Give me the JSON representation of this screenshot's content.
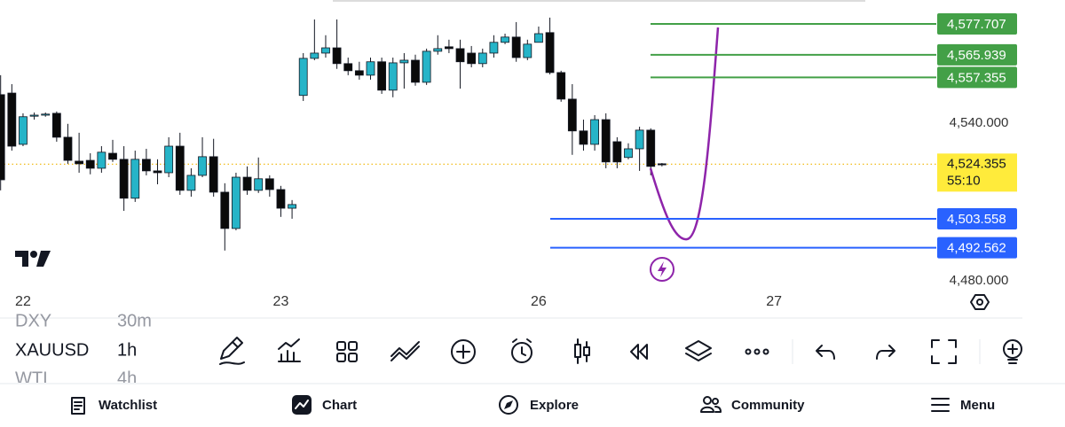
{
  "chart_data": {
    "type": "candlestick",
    "categories": [
      null,
      null,
      "22",
      null,
      null,
      null,
      null,
      null,
      null,
      null,
      null,
      null,
      null,
      null,
      null,
      null,
      null,
      null,
      null,
      null,
      null,
      null,
      null,
      null,
      null,
      "23",
      null,
      null,
      null,
      null,
      null,
      null,
      null,
      null,
      null,
      null,
      null,
      null,
      null,
      null,
      null,
      null,
      null,
      null,
      null,
      null,
      null,
      null,
      "26",
      null,
      null,
      null,
      null,
      null,
      null,
      null,
      null,
      null,
      null,
      null,
      null,
      null,
      null,
      null,
      null,
      null,
      null,
      null,
      null,
      "27"
    ],
    "open": [
      4550.8,
      4551.4,
      4531.9,
      4542.7,
      4543.0,
      4543.7,
      4534.6,
      4525.5,
      4525.8,
      4522.8,
      4528.5,
      4526.2,
      4511.4,
      4526.2,
      4521.8,
      4521.1,
      4531.2,
      4514.4,
      4520.1,
      4527.2,
      4513.7,
      4499.9,
      4519.4,
      4514.4,
      4518.8,
      4514.7,
      4507.6,
      4550.5,
      4564.6,
      4566.6,
      4568.6,
      4562.6,
      4559.9,
      4558.2,
      4563.3,
      4552.5,
      4562.9,
      4563.9,
      4555.5,
      4567.3,
      4569.0,
      4568.3,
      4566.6,
      4562.6,
      4566.6,
      4570.7,
      4572.7,
      4564.9,
      4570.7,
      4574.4,
      4559.2,
      4549.1,
      4537.0,
      4531.9,
      4541.3,
      4532.9,
      4526.9,
      4530.2,
      4537.3,
      4524.5,
      null,
      null,
      null,
      null,
      null,
      null,
      null,
      null,
      null,
      null
    ],
    "high": [
      4558.2,
      4554.8,
      4543.7,
      4544.0,
      4544.0,
      4544.4,
      4539.7,
      4536.3,
      4528.5,
      4531.2,
      4533.6,
      4531.2,
      4529.5,
      4530.2,
      4526.2,
      4534.6,
      4536.3,
      4522.8,
      4534.6,
      4534.0,
      4517.1,
      4521.1,
      4523.5,
      4526.9,
      4520.1,
      4516.1,
      4510.7,
      4566.6,
      4579.4,
      4573.4,
      4579.4,
      4564.9,
      4563.3,
      4564.9,
      4564.9,
      4564.9,
      4566.6,
      4566.0,
      4568.3,
      4573.4,
      4571.7,
      4571.7,
      4569.3,
      4568.3,
      4573.4,
      4574.0,
      4578.4,
      4571.7,
      4576.7,
      4580.1,
      4559.9,
      4554.8,
      4541.3,
      4543.0,
      4543.7,
      4534.6,
      4532.3,
      4538.6,
      4538.0,
      4524.8,
      null,
      null,
      null,
      null,
      null,
      null,
      null,
      null,
      null,
      null
    ],
    "low": [
      4514.4,
      4529.5,
      4531.2,
      4541.3,
      4542.4,
      4532.9,
      4524.5,
      4521.1,
      4520.5,
      4521.1,
      4525.2,
      4506.6,
      4510.0,
      4520.1,
      4516.7,
      4519.4,
      4512.7,
      4512.0,
      4519.4,
      4512.0,
      4491.5,
      4499.2,
      4512.7,
      4513.4,
      4512.0,
      4504.3,
      4503.6,
      4548.4,
      4563.9,
      4564.9,
      4560.6,
      4558.2,
      4556.5,
      4556.5,
      4551.1,
      4549.8,
      4553.1,
      4554.2,
      4554.5,
      4566.0,
      4566.6,
      4553.1,
      4561.2,
      4561.2,
      4564.9,
      4570.0,
      4563.3,
      4563.9,
      4570.7,
      4558.5,
      4548.1,
      4527.9,
      4529.5,
      4529.5,
      4522.8,
      4522.8,
      4526.2,
      4521.8,
      4520.1,
      4523.5,
      null,
      null,
      null,
      null,
      null,
      null,
      null,
      null,
      null,
      null
    ],
    "close": [
      4518.4,
      4531.2,
      4542.4,
      4543.0,
      4543.4,
      4534.6,
      4525.8,
      4524.5,
      4522.8,
      4528.9,
      4526.2,
      4511.4,
      4526.2,
      4521.8,
      4521.1,
      4531.2,
      4514.4,
      4520.1,
      4527.2,
      4513.7,
      4499.9,
      4519.4,
      4514.4,
      4518.8,
      4514.7,
      4507.6,
      4509.0,
      4564.6,
      4566.6,
      4568.6,
      4562.6,
      4559.9,
      4558.2,
      4563.3,
      4552.5,
      4562.9,
      4563.9,
      4555.5,
      4567.3,
      4568.3,
      4568.3,
      4563.3,
      4562.6,
      4566.6,
      4570.7,
      4572.7,
      4564.9,
      4570.0,
      4574.0,
      4559.2,
      4549.1,
      4537.0,
      4531.9,
      4541.3,
      4525.2,
      4525.2,
      4530.2,
      4537.3,
      4523.5,
      4524.355,
      null,
      null,
      null,
      null,
      null,
      null,
      null,
      null,
      null,
      null
    ],
    "up_color": "#26b4c8",
    "down_color": "#0a0a0a",
    "ylim": [
      4475.6,
      4586.8
    ],
    "yticks": [
      {
        "value": 4540,
        "label": "4,540.000"
      },
      {
        "value": 4480,
        "label": "4,480.000"
      }
    ],
    "price_lines": [
      {
        "value": 4577.707,
        "label": "4,577.707",
        "color": "#43a047"
      },
      {
        "value": 4565.939,
        "label": "4,565.939",
        "color": "#43a047"
      },
      {
        "value": 4557.355,
        "label": "4,557.355",
        "color": "#43a047"
      },
      {
        "value": 4503.558,
        "label": "4,503.558",
        "color": "#2962ff"
      },
      {
        "value": 4492.562,
        "label": "4,492.562",
        "color": "#2962ff"
      }
    ],
    "last_price": {
      "value": 4524.355,
      "label": "4,524.355",
      "countdown": "55:10",
      "color": "#ffeb3b"
    }
  },
  "toolbar": {
    "symbols": [
      {
        "symbol": "DXY",
        "interval": "30m"
      },
      {
        "symbol": "XAUUSD",
        "interval": "1h"
      },
      {
        "symbol": "WTI",
        "interval": "4h"
      }
    ]
  },
  "nav": [
    "Watchlist",
    "Chart",
    "Explore",
    "Community",
    "Menu"
  ]
}
